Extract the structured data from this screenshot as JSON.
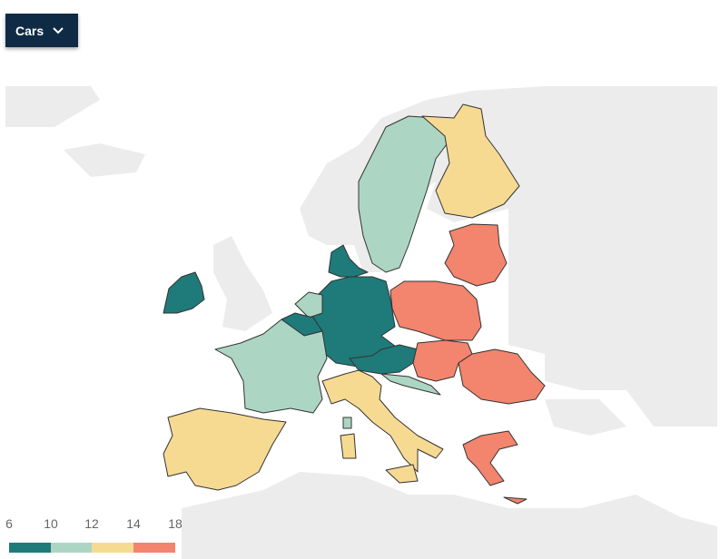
{
  "dropdown": {
    "label": "Cars"
  },
  "legend": {
    "ticks": [
      6,
      10,
      12,
      14,
      18
    ],
    "colors": [
      "#1f7a7a",
      "#acd6c3",
      "#f7da92",
      "#f3846d"
    ]
  }
}
